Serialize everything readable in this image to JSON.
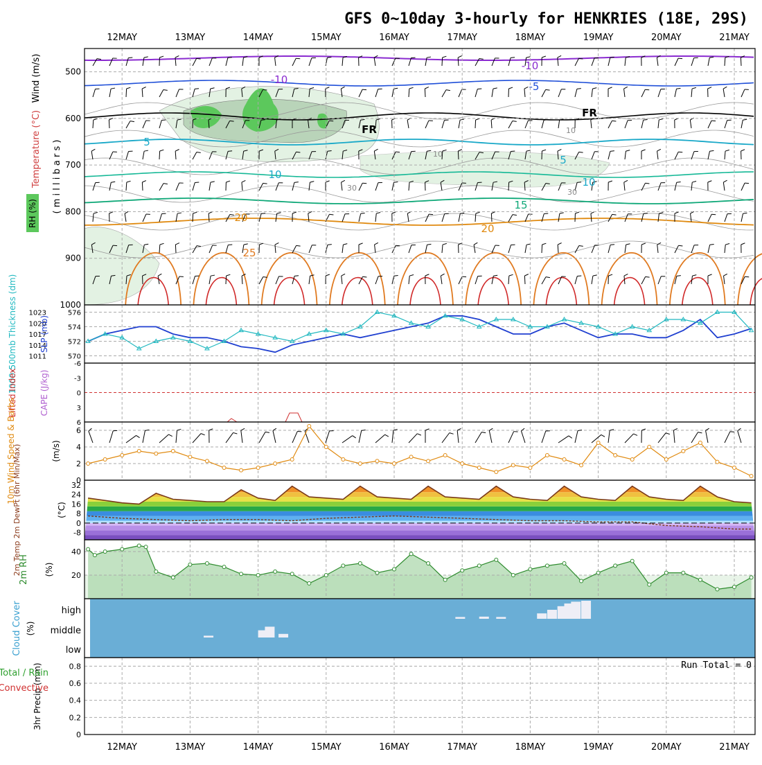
{
  "title": "GFS 0~10day 3-hourly for HENKRIES (18E, 29S)",
  "time_axis": {
    "labels": [
      "12MAY",
      "13MAY",
      "14MAY",
      "15MAY",
      "16MAY",
      "17MAY",
      "18MAY",
      "19MAY",
      "20MAY",
      "21MAY"
    ]
  },
  "colors": {
    "rh_green_dark": "#5cc85c",
    "rh_green_light": "#e3f2e3",
    "purple": "#8a2bd0",
    "blue": "#1f4fd8",
    "cyan": "#18a8c8",
    "teal": "#14b896",
    "orange": "#e08a10",
    "red": "#d02828",
    "cloud_blue": "#6aaed6",
    "slp_blue": "#1f3fd0",
    "thick_cyan": "#20b8c0"
  },
  "panels": {
    "upper": {
      "ylabel_wind": "Wind (m/s)",
      "ylabel_temp": "Temperature (°C)",
      "ylabel_rh": "RH (%)",
      "ylabel_mb": "( m i l l i b a r s )",
      "yticks": [
        "500",
        "600",
        "700",
        "800",
        "900",
        "1000"
      ],
      "contour_labels": [
        "-10",
        "-10",
        "-5",
        "5",
        "5",
        "10",
        "10",
        "15",
        "20",
        "20",
        "25",
        "FR",
        "FR",
        "10",
        "10",
        "30",
        "30"
      ]
    },
    "thickness": {
      "ylabel_left": "1000-500mb Thickness (dm)",
      "ylabel_right": "SLP (mb)",
      "yticks_left": [
        "570",
        "572",
        "574",
        "576"
      ],
      "yticks_right": [
        "1011",
        "1014",
        "1017",
        "1020",
        "1023"
      ]
    },
    "li": {
      "ylabel_left": "Lifted Index",
      "ylabel_right": "CAPE (J/kg)",
      "yticks": [
        "-6",
        "-3",
        "0",
        "3",
        "6"
      ]
    },
    "wind10": {
      "ylabel": "10m Wind Speed & Barbs",
      "unit": "(m/s)",
      "yticks": [
        "0",
        "2",
        "4",
        "6"
      ]
    },
    "temp2m": {
      "ylabel": "2m Temp 2m DewPt (6hr Min/Max)",
      "unit": "(°C)",
      "yticks": [
        "-8",
        "0",
        "8",
        "16",
        "24",
        "32"
      ]
    },
    "rh2m": {
      "ylabel": "2m RH",
      "unit": "(%)",
      "yticks": [
        "20",
        "40"
      ]
    },
    "cloud": {
      "ylabel": "Cloud Cover",
      "unit": "(%)",
      "levels": [
        "high",
        "middle",
        "low"
      ]
    },
    "precip": {
      "ylabel": "3hr Precip (mm)",
      "legend_total": "Total / Rain",
      "legend_conv": "Convective",
      "run_total": "Run Total = 0",
      "yticks": [
        "0",
        "0.2",
        "0.4",
        "0.6",
        "0.8"
      ]
    }
  },
  "chart_data": [
    {
      "type": "line",
      "title": "1000-500mb Thickness (dm) / SLP (mb)",
      "x_unit": "days from 12MAY 00Z",
      "series": [
        {
          "name": "SLP (mb)",
          "x": [
            -0.5,
            -0.25,
            0,
            0.25,
            0.5,
            0.75,
            1,
            1.25,
            1.5,
            1.75,
            2,
            2.25,
            2.5,
            2.75,
            3,
            3.25,
            3.5,
            3.75,
            4,
            4.25,
            4.5,
            4.75,
            5,
            5.25,
            5.5,
            5.75,
            6,
            6.25,
            6.5,
            6.75,
            7,
            7.25,
            7.5,
            7.75,
            8,
            8.25,
            8.5,
            8.75,
            9,
            9.25
          ],
          "values": [
            1015,
            1017,
            1018,
            1019,
            1019,
            1017,
            1016,
            1016,
            1015,
            1013.5,
            1013,
            1012,
            1014,
            1015,
            1016,
            1017,
            1016,
            1017,
            1018,
            1019,
            1020,
            1022,
            1022,
            1021,
            1019,
            1017,
            1017,
            1019,
            1020,
            1018,
            1016,
            1017,
            1017,
            1016,
            1016,
            1018,
            1021,
            1016,
            1017,
            1018.5
          ]
        },
        {
          "name": "1000-500mb Thickness (dm)",
          "x": [
            -0.5,
            -0.25,
            0,
            0.25,
            0.5,
            0.75,
            1,
            1.25,
            1.5,
            1.75,
            2,
            2.25,
            2.5,
            2.75,
            3,
            3.25,
            3.5,
            3.75,
            4,
            4.25,
            4.5,
            4.75,
            5,
            5.25,
            5.5,
            5.75,
            6,
            6.25,
            6.5,
            6.75,
            7,
            7.25,
            7.5,
            7.75,
            8,
            8.25,
            8.5,
            8.75,
            9,
            9.25
          ],
          "values": [
            572,
            573,
            572.5,
            571,
            572,
            572.5,
            572,
            571,
            572,
            573.5,
            573,
            572.5,
            572,
            573,
            573.5,
            573,
            574,
            576,
            575.5,
            574.5,
            574,
            575.5,
            575,
            574,
            575,
            575,
            574,
            574,
            575,
            574.5,
            574,
            573,
            574,
            573.5,
            575,
            575,
            574.5,
            576,
            576,
            573.5
          ]
        }
      ]
    },
    {
      "type": "line",
      "title": "10m Wind Speed (m/s)",
      "x_unit": "days from 12MAY 00Z",
      "series": [
        {
          "name": "10m Wind Speed",
          "x": [
            -0.5,
            -0.25,
            0,
            0.25,
            0.5,
            0.75,
            1,
            1.25,
            1.5,
            1.75,
            2,
            2.25,
            2.5,
            2.75,
            3,
            3.25,
            3.5,
            3.75,
            4,
            4.25,
            4.5,
            4.75,
            5,
            5.25,
            5.5,
            5.75,
            6,
            6.25,
            6.5,
            6.75,
            7,
            7.25,
            7.5,
            7.75,
            8,
            8.25,
            8.5,
            8.75,
            9,
            9.25
          ],
          "values": [
            2,
            2.5,
            3,
            3.5,
            3.2,
            3.5,
            2.8,
            2.3,
            1.5,
            1.2,
            1.5,
            2,
            2.5,
            6.5,
            4,
            2.5,
            2,
            2.3,
            2,
            2.8,
            2.3,
            3,
            2,
            1.5,
            1,
            1.8,
            1.5,
            3,
            2.5,
            1.8,
            4.5,
            3,
            2.5,
            4,
            2.5,
            3.5,
            4.5,
            2.2,
            1.5,
            0.5
          ]
        }
      ]
    },
    {
      "type": "line",
      "title": "2m Temp / 2m DewPt (°C)",
      "x_unit": "days from 12MAY 00Z",
      "series": [
        {
          "name": "2m Temp",
          "x": [
            -0.5,
            0,
            0.25,
            0.5,
            0.75,
            1,
            1.25,
            1.5,
            1.75,
            2,
            2.25,
            2.5,
            2.75,
            3,
            3.25,
            3.5,
            3.75,
            4,
            4.25,
            4.5,
            4.75,
            5,
            5.25,
            5.5,
            5.75,
            6,
            6.25,
            6.5,
            6.75,
            7,
            7.25,
            7.5,
            7.75,
            8,
            8.25,
            8.5,
            8.75,
            9,
            9.25
          ],
          "values": [
            21,
            17,
            16,
            25,
            20,
            19,
            18,
            18,
            28,
            21,
            19,
            31,
            22,
            21,
            20,
            31,
            22,
            21,
            20,
            31,
            22,
            21,
            20,
            31,
            22,
            20,
            19,
            31,
            22,
            20,
            19,
            31,
            22,
            20,
            19,
            31,
            22,
            18,
            17
          ]
        },
        {
          "name": "2m DewPt",
          "x": [
            -0.5,
            0,
            0.5,
            1,
            1.5,
            2,
            2.5,
            3,
            3.5,
            4,
            4.5,
            5,
            5.5,
            6,
            6.5,
            7,
            7.5,
            8,
            8.5,
            9,
            9.25
          ],
          "values": [
            6,
            4,
            3,
            2,
            3,
            3,
            2,
            4,
            5,
            6,
            5,
            4,
            3,
            2,
            2,
            1,
            1,
            -2,
            -3,
            -5,
            -5
          ]
        }
      ]
    },
    {
      "type": "area",
      "title": "2m RH (%)",
      "x_unit": "days from 12MAY 00Z",
      "series": [
        {
          "name": "2m RH",
          "x": [
            -0.5,
            -0.4,
            -0.25,
            0,
            0.25,
            0.35,
            0.5,
            0.75,
            1,
            1.25,
            1.5,
            1.75,
            2,
            2.25,
            2.5,
            2.75,
            3,
            3.25,
            3.5,
            3.75,
            4,
            4.25,
            4.5,
            4.75,
            5,
            5.25,
            5.5,
            5.75,
            6,
            6.25,
            6.5,
            6.75,
            7,
            7.25,
            7.5,
            7.75,
            8,
            8.25,
            8.5,
            8.75,
            9,
            9.25
          ],
          "values": [
            42,
            37,
            40,
            42,
            45,
            44,
            23,
            18,
            29,
            30,
            27,
            21,
            20,
            23,
            21,
            13,
            20,
            28,
            30,
            22,
            25,
            38,
            30,
            16,
            24,
            28,
            33,
            20,
            25,
            28,
            30,
            15,
            22,
            28,
            32,
            12,
            22,
            22,
            16,
            8,
            10,
            18
          ]
        }
      ]
    },
    {
      "type": "bar",
      "title": "Cloud Cover (%)",
      "x_unit": "days from 12MAY 00Z",
      "series": [
        {
          "name": "middle",
          "x": [
            1.2,
            2.0,
            2.1,
            2.3
          ],
          "values": [
            10,
            40,
            60,
            20
          ]
        },
        {
          "name": "high",
          "x": [
            4.9,
            5.25,
            5.5,
            6.1,
            6.25,
            6.4,
            6.5,
            6.6,
            6.75
          ],
          "values": [
            10,
            12,
            10,
            30,
            50,
            70,
            85,
            95,
            100
          ]
        }
      ]
    },
    {
      "type": "bar",
      "title": "3hr Precip (mm)",
      "ylim": [
        0,
        0.9
      ],
      "series": [
        {
          "name": "Total / Rain",
          "values": []
        }
      ]
    }
  ]
}
